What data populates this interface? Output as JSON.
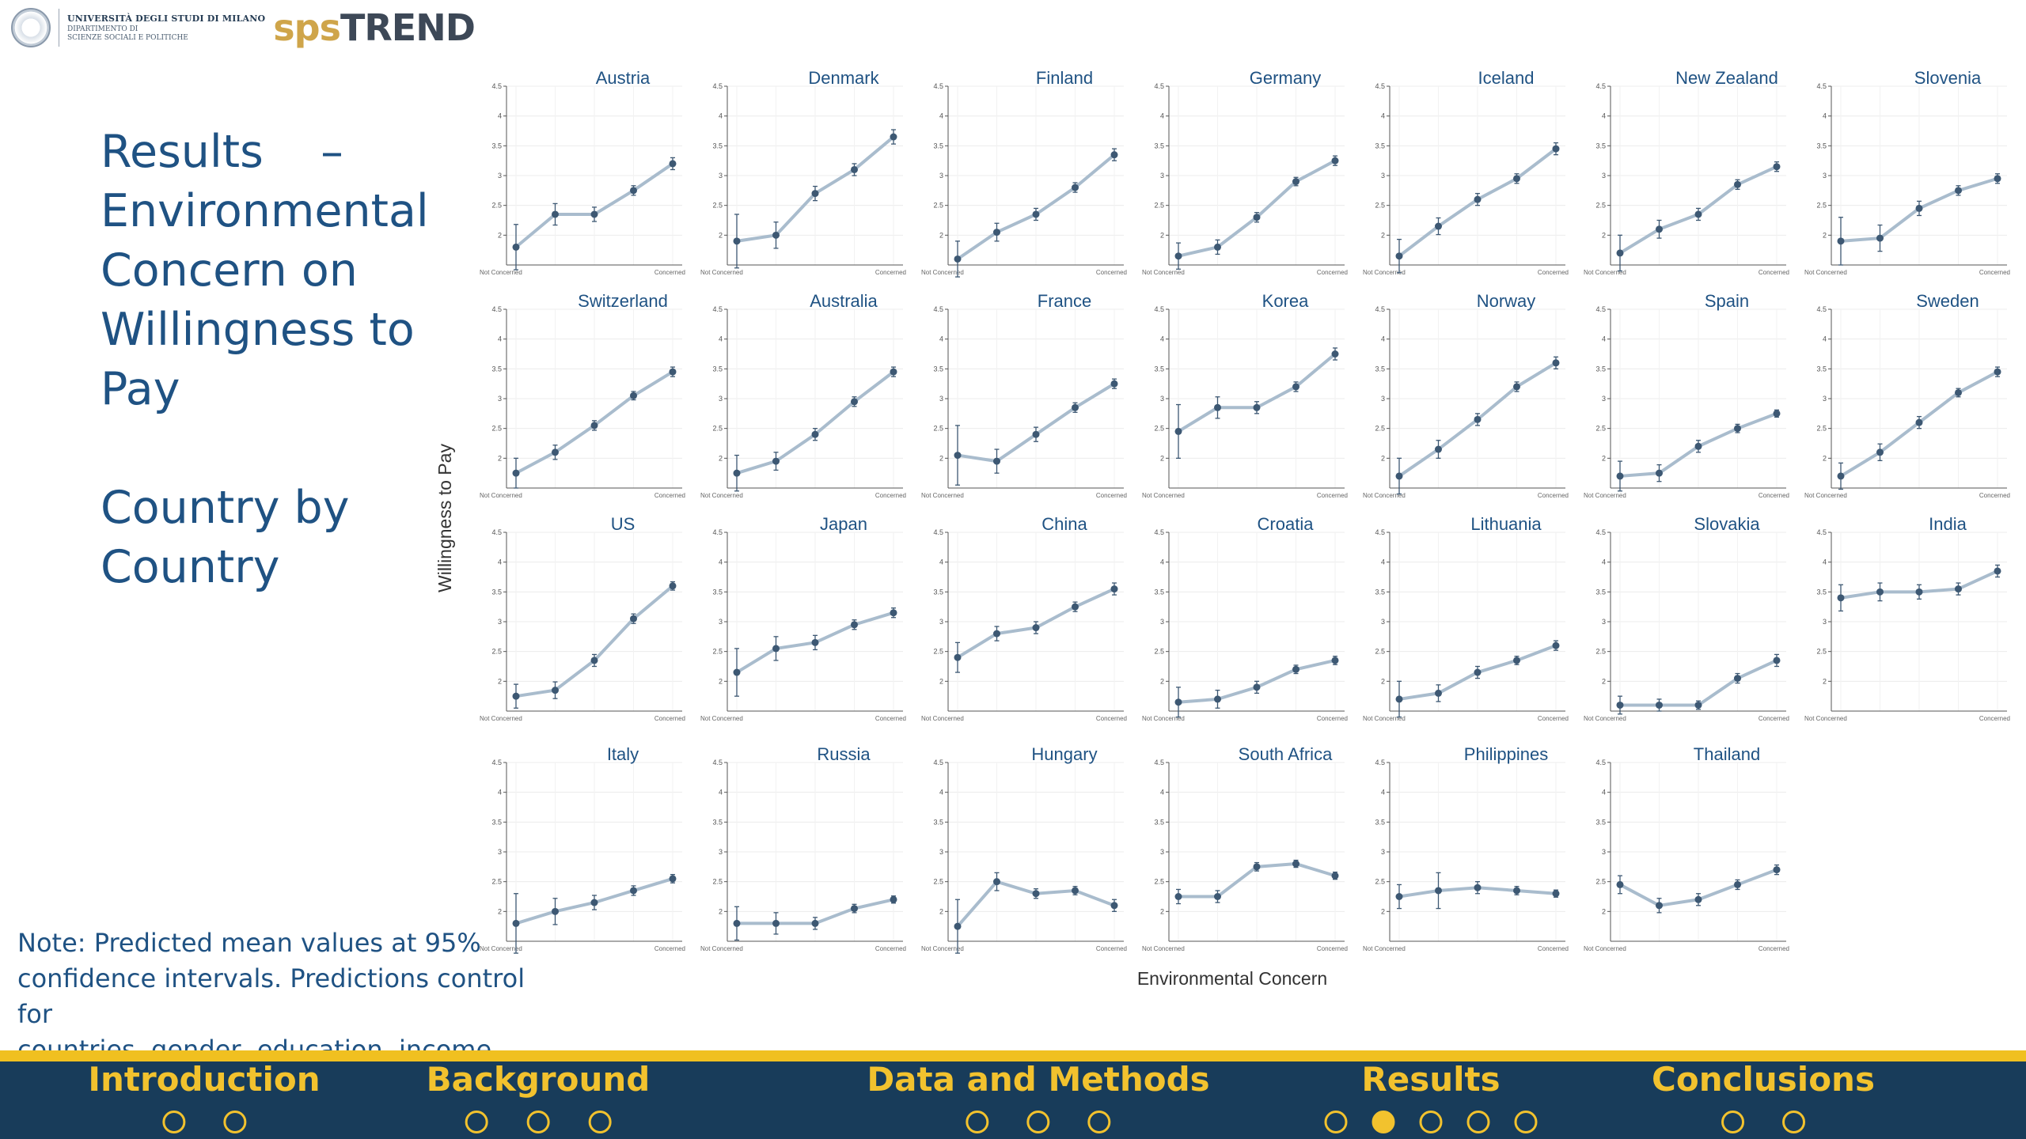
{
  "header": {
    "university": "UNIVERSITÀ DEGLI STUDI DI MILANO",
    "department_line1": "DIPARTIMENTO DI",
    "department_line2": "SCIENZE SOCIALI E POLITICHE",
    "brand_part1": "sps",
    "brand_part2": "TREND"
  },
  "title": {
    "line1": "Results    –",
    "line2": "Environmental",
    "line3": "Concern on",
    "line4": "Willingness to",
    "line5": "Pay",
    "sub1": "Country by",
    "sub2": "Country"
  },
  "note": {
    "line1": "Note: Predicted mean values at 95%",
    "line2": "confidence intervals. Predictions control for",
    "line3": "countries, gender, education, income"
  },
  "chart_data": {
    "type": "line",
    "xlabel": "Environmental Concern",
    "ylabel": "Willingness to Pay",
    "x_tick_labels": [
      "Not Concerned",
      "Concerned"
    ],
    "x_points": 5,
    "ylim": [
      1.5,
      4.5
    ],
    "y_ticks": [
      2,
      2.5,
      3,
      3.5,
      4,
      4.5
    ],
    "grid": true,
    "panels": [
      {
        "title": "Austria",
        "values": [
          1.8,
          2.35,
          2.35,
          2.75,
          3.2
        ],
        "ci": [
          0.38,
          0.18,
          0.12,
          0.08,
          0.1
        ]
      },
      {
        "title": "Denmark",
        "values": [
          1.9,
          2.0,
          2.7,
          3.1,
          3.65
        ],
        "ci": [
          0.45,
          0.22,
          0.12,
          0.1,
          0.12
        ]
      },
      {
        "title": "Finland",
        "values": [
          1.6,
          2.05,
          2.35,
          2.8,
          3.35
        ],
        "ci": [
          0.3,
          0.15,
          0.1,
          0.08,
          0.1
        ]
      },
      {
        "title": "Germany",
        "values": [
          1.65,
          1.8,
          2.3,
          2.9,
          3.25
        ],
        "ci": [
          0.22,
          0.12,
          0.08,
          0.07,
          0.08
        ]
      },
      {
        "title": "Iceland",
        "values": [
          1.65,
          2.15,
          2.6,
          2.95,
          3.45
        ],
        "ci": [
          0.28,
          0.14,
          0.1,
          0.08,
          0.1
        ]
      },
      {
        "title": "New Zealand",
        "values": [
          1.7,
          2.1,
          2.35,
          2.85,
          3.15
        ],
        "ci": [
          0.3,
          0.15,
          0.1,
          0.08,
          0.08
        ]
      },
      {
        "title": "Slovenia",
        "values": [
          1.9,
          1.95,
          2.45,
          2.75,
          2.95
        ],
        "ci": [
          0.4,
          0.22,
          0.12,
          0.08,
          0.08
        ]
      },
      {
        "title": "Switzerland",
        "values": [
          1.75,
          2.1,
          2.55,
          3.05,
          3.45
        ],
        "ci": [
          0.25,
          0.12,
          0.08,
          0.07,
          0.08
        ]
      },
      {
        "title": "Australia",
        "values": [
          1.75,
          1.95,
          2.4,
          2.95,
          3.45
        ],
        "ci": [
          0.3,
          0.15,
          0.1,
          0.08,
          0.08
        ]
      },
      {
        "title": "France",
        "values": [
          2.05,
          1.95,
          2.4,
          2.85,
          3.25
        ],
        "ci": [
          0.5,
          0.2,
          0.12,
          0.08,
          0.08
        ]
      },
      {
        "title": "Korea",
        "values": [
          2.45,
          2.85,
          2.85,
          3.2,
          3.75
        ],
        "ci": [
          0.45,
          0.18,
          0.1,
          0.08,
          0.1
        ]
      },
      {
        "title": "Norway",
        "values": [
          1.7,
          2.15,
          2.65,
          3.2,
          3.6
        ],
        "ci": [
          0.3,
          0.15,
          0.1,
          0.08,
          0.1
        ]
      },
      {
        "title": "Spain",
        "values": [
          1.7,
          1.75,
          2.2,
          2.5,
          2.75
        ],
        "ci": [
          0.25,
          0.14,
          0.1,
          0.07,
          0.06
        ]
      },
      {
        "title": "Sweden",
        "values": [
          1.7,
          2.1,
          2.6,
          3.1,
          3.45
        ],
        "ci": [
          0.22,
          0.14,
          0.1,
          0.07,
          0.08
        ]
      },
      {
        "title": "US",
        "values": [
          1.75,
          1.85,
          2.35,
          3.05,
          3.6
        ],
        "ci": [
          0.2,
          0.14,
          0.1,
          0.08,
          0.07
        ]
      },
      {
        "title": "Japan",
        "values": [
          2.15,
          2.55,
          2.65,
          2.95,
          3.15
        ],
        "ci": [
          0.4,
          0.2,
          0.12,
          0.08,
          0.08
        ]
      },
      {
        "title": "China",
        "values": [
          2.4,
          2.8,
          2.9,
          3.25,
          3.55
        ],
        "ci": [
          0.25,
          0.12,
          0.1,
          0.08,
          0.1
        ]
      },
      {
        "title": "Croatia",
        "values": [
          1.65,
          1.7,
          1.9,
          2.2,
          2.35
        ],
        "ci": [
          0.25,
          0.15,
          0.1,
          0.07,
          0.07
        ]
      },
      {
        "title": "Lithuania",
        "values": [
          1.7,
          1.8,
          2.15,
          2.35,
          2.6
        ],
        "ci": [
          0.3,
          0.14,
          0.1,
          0.07,
          0.08
        ]
      },
      {
        "title": "Slovakia",
        "values": [
          1.6,
          1.6,
          1.6,
          2.05,
          2.35
        ],
        "ci": [
          0.15,
          0.1,
          0.07,
          0.08,
          0.1
        ]
      },
      {
        "title": "India",
        "values": [
          3.4,
          3.5,
          3.5,
          3.55,
          3.85
        ],
        "ci": [
          0.22,
          0.15,
          0.12,
          0.1,
          0.1
        ]
      },
      {
        "title": "Italy",
        "values": [
          1.8,
          2.0,
          2.15,
          2.35,
          2.55
        ],
        "ci": [
          0.5,
          0.22,
          0.12,
          0.08,
          0.07
        ]
      },
      {
        "title": "Russia",
        "values": [
          1.8,
          1.8,
          1.8,
          2.05,
          2.2
        ],
        "ci": [
          0.28,
          0.18,
          0.1,
          0.07,
          0.06
        ]
      },
      {
        "title": "Hungary",
        "values": [
          1.75,
          2.5,
          2.3,
          2.35,
          2.1
        ],
        "ci": [
          0.45,
          0.15,
          0.08,
          0.07,
          0.1
        ]
      },
      {
        "title": "South Africa",
        "values": [
          2.25,
          2.25,
          2.75,
          2.8,
          2.6
        ],
        "ci": [
          0.12,
          0.1,
          0.07,
          0.06,
          0.06
        ]
      },
      {
        "title": "Philippines",
        "values": [
          2.25,
          2.35,
          2.4,
          2.35,
          2.3
        ],
        "ci": [
          0.2,
          0.3,
          0.1,
          0.07,
          0.06
        ]
      },
      {
        "title": "Thailand",
        "values": [
          2.45,
          2.1,
          2.2,
          2.45,
          2.7
        ],
        "ci": [
          0.15,
          0.12,
          0.1,
          0.08,
          0.08
        ]
      }
    ]
  },
  "nav": {
    "sections": [
      {
        "label": "Introduction",
        "dots": 2,
        "active": -1
      },
      {
        "label": "Background",
        "dots": 3,
        "active": -1
      },
      {
        "label": "Data and Methods",
        "dots": 3,
        "active": -1
      },
      {
        "label": "Results",
        "dots": 5,
        "active": 1
      },
      {
        "label": "Conclusions",
        "dots": 2,
        "active": -1
      }
    ]
  },
  "colors": {
    "title_blue": "#1f5283",
    "nav_bg": "#183c5a",
    "nav_gold": "#f2c22e",
    "line": "#a9bccd",
    "point": "#3d5873",
    "panel_title": "#1f5283"
  }
}
